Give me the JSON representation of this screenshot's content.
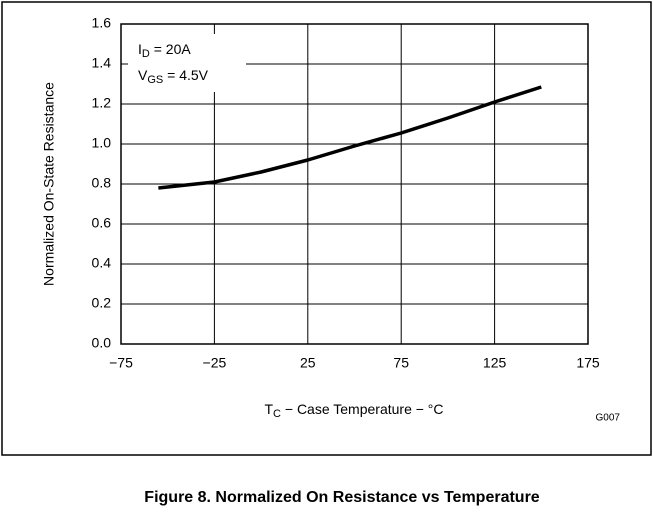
{
  "chart_data": {
    "type": "line",
    "y_label": "Normalized On-State Resistance",
    "x_label": {
      "main": "T",
      "sub": "C",
      "rest": " − Case Temperature − °C"
    },
    "annotations": [
      {
        "main": "I",
        "sub": "D",
        "rest": " = 20A"
      },
      {
        "main": "V",
        "sub": "GS",
        "rest": " = 4.5V"
      }
    ],
    "code": "G007",
    "caption": "Figure 8. Normalized On Resistance vs Temperature",
    "x": [
      -55,
      -25,
      0,
      25,
      50,
      75,
      100,
      125,
      150
    ],
    "series": [
      {
        "name": "On-State Resistance",
        "color": "#000000",
        "values": [
          0.78,
          0.81,
          0.86,
          0.92,
          0.99,
          1.055,
          1.13,
          1.21,
          1.285
        ]
      }
    ],
    "xlim": [
      -75,
      175
    ],
    "xticks": [
      {
        "value": -75,
        "label": "−75"
      },
      {
        "value": -25,
        "label": "−25"
      },
      25,
      75,
      125,
      175
    ],
    "ylim": [
      0,
      1.6
    ],
    "yticks": [
      {
        "value": 0,
        "label": "0.0"
      },
      0.2,
      0.4,
      0.6,
      0.8,
      {
        "value": 1,
        "label": "1.0"
      },
      1.2,
      1.4,
      1.6
    ],
    "grid": true
  }
}
